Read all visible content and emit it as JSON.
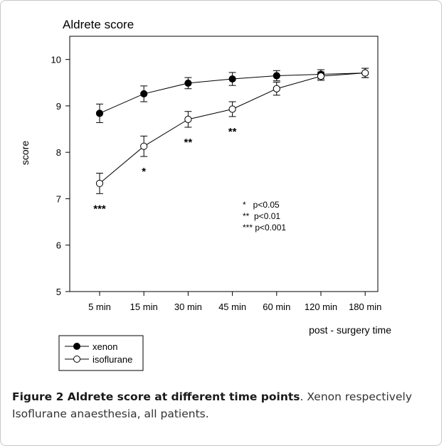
{
  "chart_data": {
    "type": "line",
    "title": "Aldrete score",
    "xlabel": "post - surgery time",
    "ylabel": "score",
    "categories": [
      "5 min",
      "15 min",
      "30 min",
      "45 min",
      "60 min",
      "120 min",
      "180 min"
    ],
    "ylim": [
      5,
      10.5
    ],
    "yticks": [
      5,
      6,
      7,
      8,
      9,
      10
    ],
    "grid": false,
    "legend_position": "bottom-left",
    "series": [
      {
        "name": "xenon",
        "marker": "filled-circle",
        "values": [
          8.84,
          9.26,
          9.49,
          9.58,
          9.65,
          9.68,
          9.71
        ],
        "errors": [
          0.2,
          0.17,
          0.12,
          0.14,
          0.11,
          0.1,
          0.1
        ]
      },
      {
        "name": "isoflurane",
        "marker": "open-circle",
        "values": [
          7.33,
          8.13,
          8.71,
          8.93,
          9.37,
          9.64,
          9.71
        ],
        "errors": [
          0.22,
          0.22,
          0.17,
          0.16,
          0.14,
          0.09,
          0.1
        ]
      }
    ],
    "significance": [
      "***",
      "*",
      "**",
      "**",
      "",
      "",
      ""
    ],
    "annotation_lines": [
      "*   p<0.05",
      "**  p<0.01",
      "*** p<0.001"
    ]
  },
  "caption": {
    "label": "Figure 2 Aldrete score at different time points",
    "text": ". Xenon respectively Isoflurane anaesthesia, all patients."
  }
}
